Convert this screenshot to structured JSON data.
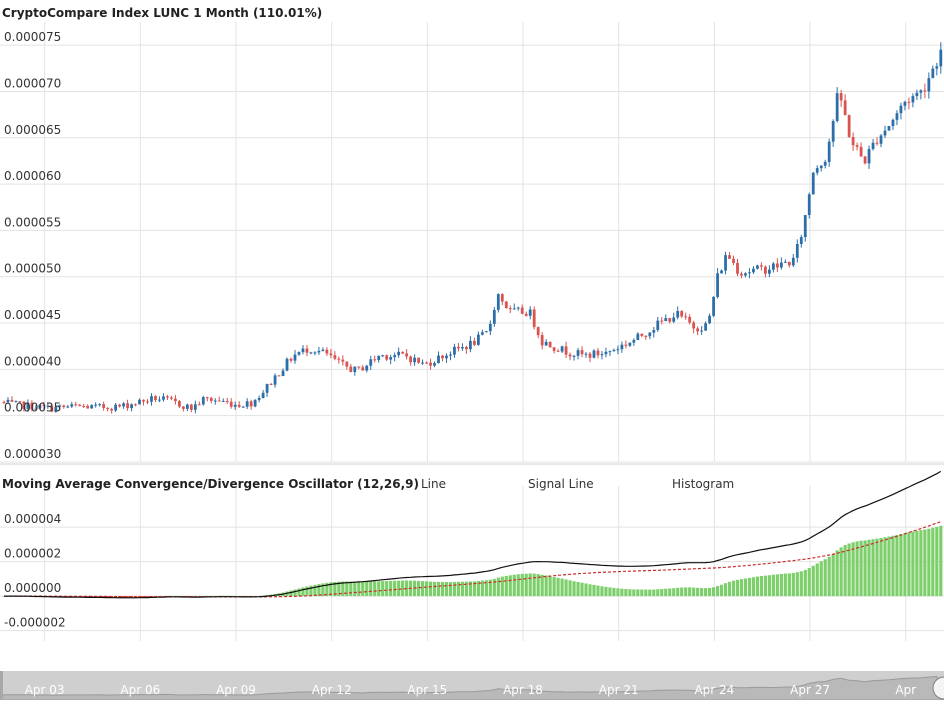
{
  "chart_data": [
    {
      "type": "candlestick",
      "title": "CryptoCompare Index LUNC 1 Month (110.01%)",
      "ylim": [
        3e-05,
        7.75e-05
      ],
      "yticks": [
        "0.000030",
        "0.000035",
        "0.000040",
        "0.000045",
        "0.000050",
        "0.000055",
        "0.000060",
        "0.000065",
        "0.000070",
        "0.000075"
      ],
      "xticks": [
        "Apr 03",
        "Apr 06",
        "Apr 09",
        "Apr 12",
        "Apr 15",
        "Apr 18",
        "Apr 21",
        "Apr 24",
        "Apr 27",
        "Apr"
      ],
      "x_range_days": [
        1.6,
        31.2
      ],
      "x_tick_days": [
        3,
        6,
        9,
        12,
        15,
        18,
        21,
        24,
        27,
        30
      ],
      "candles_per_day": 8,
      "close_waypoints": [
        [
          1.6,
          3.65e-05
        ],
        [
          2.0,
          3.62e-05
        ],
        [
          2.7,
          3.6e-05
        ],
        [
          3.2,
          3.58e-05
        ],
        [
          4.0,
          3.6e-05
        ],
        [
          4.7,
          3.59e-05
        ],
        [
          5.4,
          3.6e-05
        ],
        [
          6.1,
          3.66e-05
        ],
        [
          6.5,
          3.69e-05
        ],
        [
          7.0,
          3.65e-05
        ],
        [
          7.6,
          3.58e-05
        ],
        [
          8.0,
          3.68e-05
        ],
        [
          8.5,
          3.66e-05
        ],
        [
          9.0,
          3.62e-05
        ],
        [
          9.5,
          3.64e-05
        ],
        [
          9.9,
          3.78e-05
        ],
        [
          10.3,
          3.95e-05
        ],
        [
          10.8,
          4.15e-05
        ],
        [
          11.3,
          4.23e-05
        ],
        [
          11.8,
          4.17e-05
        ],
        [
          12.3,
          4.05e-05
        ],
        [
          12.8,
          3.98e-05
        ],
        [
          13.5,
          4.15e-05
        ],
        [
          14.3,
          4.15e-05
        ],
        [
          14.9,
          4.05e-05
        ],
        [
          15.5,
          4.15e-05
        ],
        [
          16.4,
          4.28e-05
        ],
        [
          16.9,
          4.4e-05
        ],
        [
          17.2,
          4.82e-05
        ],
        [
          17.6,
          4.62e-05
        ],
        [
          18.2,
          4.62e-05
        ],
        [
          18.6,
          4.3e-05
        ],
        [
          19.3,
          4.2e-05
        ],
        [
          19.9,
          4.15e-05
        ],
        [
          20.6,
          4.18e-05
        ],
        [
          21.5,
          4.32e-05
        ],
        [
          22.2,
          4.48e-05
        ],
        [
          22.8,
          4.6e-05
        ],
        [
          23.4,
          4.45e-05
        ],
        [
          23.8,
          4.48e-05
        ],
        [
          24.1,
          5e-05
        ],
        [
          24.4,
          5.25e-05
        ],
        [
          24.8,
          5.05e-05
        ],
        [
          25.5,
          5.08e-05
        ],
        [
          26.0,
          5.12e-05
        ],
        [
          26.5,
          5.18e-05
        ],
        [
          26.8,
          5.55e-05
        ],
        [
          27.1,
          6.15e-05
        ],
        [
          27.5,
          6.3e-05
        ],
        [
          27.9,
          7e-05
        ],
        [
          28.3,
          6.45e-05
        ],
        [
          28.7,
          6.25e-05
        ],
        [
          29.1,
          6.5e-05
        ],
        [
          29.5,
          6.65e-05
        ],
        [
          30.0,
          6.9e-05
        ],
        [
          30.5,
          7e-05
        ],
        [
          31.2,
          7.5e-05
        ]
      ]
    },
    {
      "type": "macd",
      "title": "Moving Average Convergence/Divergence Oscillator (12,26,9)",
      "legend": [
        "Line",
        "Signal Line",
        "Histogram"
      ],
      "ylim": [
        -2.6e-06,
        5.8e-06
      ],
      "yticks": [
        "-0.000002",
        "0.000000",
        "0.000002",
        "0.000004"
      ],
      "ytick_values": [
        -2e-06,
        0,
        2e-06,
        4e-06
      ],
      "fast": 12,
      "slow": 26,
      "signal": 9
    }
  ],
  "colors": {
    "up": "#2c6fa8",
    "down": "#d9534f",
    "wick": "#333333",
    "macd_line": "#111111",
    "signal_line": "#cc2a2a",
    "hist_pos": "#7dcf6b",
    "hist_neg": "#d9412f",
    "grid": "#e3e3e3",
    "navigator_bg": "#cfcfcf"
  }
}
